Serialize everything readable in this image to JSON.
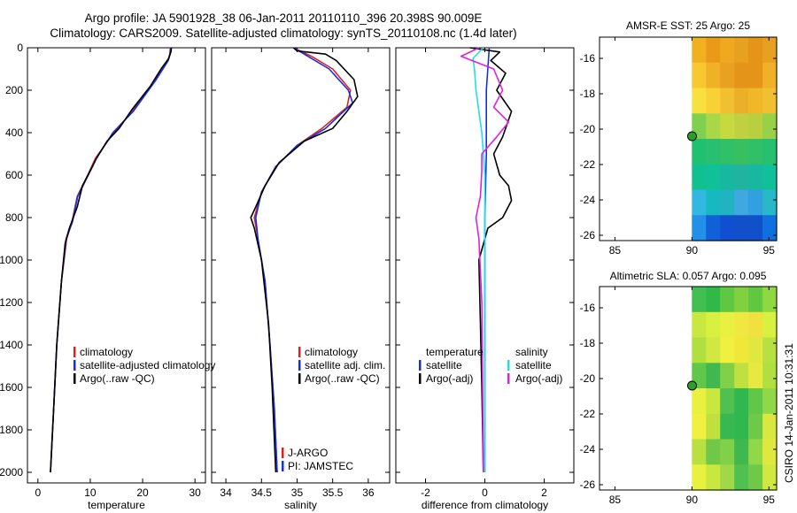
{
  "titles": {
    "line1": "Argo profile: JA 5901928_38 06-Jan-2011 20110110_396 20.398S 90.009E",
    "line2": "Climatology: CARS2009. Satellite-adjusted climatology: synTS_20110108.nc (1.4d later)"
  },
  "side_label": "CSIRO 14-Jan-2011 10:31:31",
  "colors": {
    "climatology": "#e02020",
    "satellite": "#1530e0",
    "argo": "#000000",
    "sal_satellite": "#20e0e0",
    "sal_argo": "#e020e0",
    "marker": "#2aa02a"
  },
  "chart_data": [
    {
      "type": "line",
      "name": "temperature-profile",
      "xlabel": "temperature",
      "ylabel": "",
      "xlim": [
        -2,
        32
      ],
      "ylim": [
        2050,
        0
      ],
      "xticks": [
        "0",
        "10",
        "20",
        "30"
      ],
      "xtick_values": [
        0,
        10,
        20,
        30
      ],
      "yticks": [
        "0",
        "200",
        "400",
        "600",
        "800",
        "1000",
        "1200",
        "1400",
        "1600",
        "1800",
        "2000"
      ],
      "ytick_values": [
        0,
        200,
        400,
        600,
        800,
        1000,
        1200,
        1400,
        1600,
        1800,
        2000
      ],
      "legend": [
        "climatology",
        "satellite-adjusted climatology",
        "Argo(..raw -QC)"
      ],
      "series": [
        {
          "name": "climatology",
          "color_key": "climatology",
          "points": [
            [
              25.3,
              0
            ],
            [
              25.2,
              30
            ],
            [
              24.8,
              60
            ],
            [
              22.5,
              150
            ],
            [
              18,
              300
            ],
            [
              14.5,
              400
            ],
            [
              11,
              520
            ],
            [
              9.5,
              600
            ],
            [
              7.5,
              700
            ],
            [
              6.5,
              820
            ],
            [
              5.5,
              900
            ],
            [
              4.5,
              1100
            ],
            [
              3.6,
              1400
            ],
            [
              3,
              1700
            ],
            [
              2.4,
              2000
            ]
          ]
        },
        {
          "name": "satellite-adjusted climatology",
          "color_key": "satellite",
          "points": [
            [
              25.4,
              0
            ],
            [
              25.2,
              30
            ],
            [
              24.9,
              60
            ],
            [
              22.6,
              150
            ],
            [
              18.2,
              300
            ],
            [
              14.3,
              400
            ],
            [
              11.2,
              520
            ],
            [
              9.6,
              600
            ],
            [
              7.6,
              700
            ],
            [
              6.6,
              820
            ],
            [
              5.4,
              900
            ],
            [
              4.5,
              1100
            ],
            [
              3.6,
              1400
            ],
            [
              3,
              1700
            ],
            [
              2.4,
              2000
            ]
          ]
        },
        {
          "name": "Argo(..raw -QC)",
          "color_key": "argo",
          "points": [
            [
              25.5,
              0
            ],
            [
              25.4,
              20
            ],
            [
              25,
              50
            ],
            [
              23.5,
              100
            ],
            [
              21.5,
              180
            ],
            [
              18,
              290
            ],
            [
              15.5,
              380
            ],
            [
              13.2,
              440
            ],
            [
              11.2,
              520
            ],
            [
              10,
              580
            ],
            [
              8.5,
              650
            ],
            [
              7.5,
              750
            ],
            [
              6,
              850
            ],
            [
              5.2,
              920
            ],
            [
              4.5,
              1100
            ],
            [
              3.6,
              1400
            ],
            [
              3,
              1700
            ],
            [
              2.4,
              2000
            ]
          ]
        }
      ]
    },
    {
      "type": "line",
      "name": "salinity-profile",
      "xlabel": "salinity",
      "xlim": [
        33.8,
        36.3
      ],
      "ylim": [
        2050,
        0
      ],
      "xticks": [
        "34",
        "34.5",
        "35",
        "35.5",
        "36"
      ],
      "xtick_values": [
        34,
        34.5,
        35,
        35.5,
        36
      ],
      "legend": [
        "climatology",
        "satellite adj. clim.",
        "Argo(..raw -QC)"
      ],
      "annotations": [
        "J-ARGO",
        "PI: JAMSTEC"
      ],
      "series": [
        {
          "name": "climatology",
          "color_key": "climatology",
          "points": [
            [
              34.95,
              0
            ],
            [
              35.2,
              40
            ],
            [
              35.5,
              100
            ],
            [
              35.75,
              200
            ],
            [
              35.7,
              280
            ],
            [
              35.35,
              380
            ],
            [
              35.0,
              460
            ],
            [
              34.7,
              560
            ],
            [
              34.5,
              680
            ],
            [
              34.4,
              800
            ],
            [
              34.45,
              900
            ],
            [
              34.55,
              1100
            ],
            [
              34.62,
              1400
            ],
            [
              34.68,
              1700
            ],
            [
              34.72,
              2000
            ]
          ]
        },
        {
          "name": "satellite adj. clim.",
          "color_key": "satellite",
          "points": [
            [
              34.95,
              0
            ],
            [
              35.15,
              40
            ],
            [
              35.45,
              100
            ],
            [
              35.72,
              200
            ],
            [
              35.78,
              260
            ],
            [
              35.4,
              380
            ],
            [
              35.0,
              460
            ],
            [
              34.7,
              560
            ],
            [
              34.5,
              680
            ],
            [
              34.42,
              800
            ],
            [
              34.45,
              900
            ],
            [
              34.55,
              1100
            ],
            [
              34.62,
              1400
            ],
            [
              34.68,
              1700
            ],
            [
              34.72,
              2000
            ]
          ]
        },
        {
          "name": "Argo(..raw -QC)",
          "color_key": "argo",
          "points": [
            [
              34.95,
              0
            ],
            [
              35.0,
              15
            ],
            [
              35.4,
              30
            ],
            [
              35.55,
              60
            ],
            [
              35.8,
              150
            ],
            [
              35.85,
              230
            ],
            [
              35.7,
              300
            ],
            [
              35.5,
              380
            ],
            [
              35.1,
              440
            ],
            [
              34.75,
              540
            ],
            [
              34.55,
              650
            ],
            [
              34.42,
              750
            ],
            [
              34.35,
              800
            ],
            [
              34.4,
              850
            ],
            [
              34.5,
              1000
            ],
            [
              34.6,
              1300
            ],
            [
              34.65,
              1600
            ],
            [
              34.7,
              2000
            ]
          ]
        }
      ]
    },
    {
      "type": "line",
      "name": "difference-profile",
      "xlabel": "difference from climatology",
      "xlim": [
        -3,
        3
      ],
      "ylim": [
        2050,
        0
      ],
      "xticks": [
        "-2",
        "0",
        "2"
      ],
      "xtick_values": [
        -2,
        0,
        2
      ],
      "legend_left": [
        "temperature",
        "satellite",
        "Argo(-adj)"
      ],
      "legend_right": [
        "salinity",
        "satellite",
        "Argo(-adj)"
      ],
      "series": [
        {
          "name": "temperature satellite",
          "color_key": "satellite",
          "points": [
            [
              0.15,
              0
            ],
            [
              0.05,
              200
            ],
            [
              0.05,
              500
            ],
            [
              0,
              800
            ],
            [
              0,
              2000
            ]
          ]
        },
        {
          "name": "temperature Argo(-adj)",
          "color_key": "argo",
          "points": [
            [
              -0.5,
              0
            ],
            [
              0.5,
              20
            ],
            [
              0.2,
              60
            ],
            [
              0.7,
              120
            ],
            [
              0.4,
              200
            ],
            [
              0.9,
              300
            ],
            [
              0.6,
              420
            ],
            [
              0.3,
              500
            ],
            [
              0.5,
              600
            ],
            [
              0.8,
              650
            ],
            [
              0.9,
              720
            ],
            [
              0.6,
              800
            ],
            [
              0.1,
              850
            ],
            [
              -0.2,
              1000
            ],
            [
              -0.15,
              1300
            ],
            [
              -0.1,
              1600
            ],
            [
              -0.05,
              2000
            ]
          ]
        },
        {
          "name": "salinity satellite",
          "color_key": "sal_satellite",
          "points": [
            [
              -0.05,
              0
            ],
            [
              -0.4,
              50
            ],
            [
              -0.35,
              100
            ],
            [
              -0.3,
              200
            ],
            [
              -0.1,
              400
            ],
            [
              0,
              600
            ],
            [
              0,
              800
            ],
            [
              0,
              2000
            ]
          ]
        },
        {
          "name": "salinity Argo(-adj)",
          "color_key": "sal_argo",
          "points": [
            [
              -0.2,
              0
            ],
            [
              -0.8,
              40
            ],
            [
              0.3,
              100
            ],
            [
              0.6,
              200
            ],
            [
              0.3,
              280
            ],
            [
              0.8,
              350
            ],
            [
              0.4,
              420
            ],
            [
              -0.1,
              500
            ],
            [
              -0.1,
              580
            ],
            [
              -0.15,
              700
            ],
            [
              -0.3,
              800
            ],
            [
              -0.2,
              900
            ],
            [
              -0.1,
              1200
            ],
            [
              -0.08,
              1500
            ],
            [
              -0.05,
              2000
            ]
          ]
        }
      ]
    },
    {
      "type": "heatmap",
      "name": "amsr-sst-map",
      "title": "AMSR-E SST: 25 Argo: 25",
      "xlim": [
        84,
        95.5
      ],
      "ylim": [
        -26.3,
        -14.8
      ],
      "xticks": [
        "85",
        "90",
        "95"
      ],
      "xtick_values": [
        85,
        90,
        95
      ],
      "yticks": [
        "-16",
        "-18",
        "-20",
        "-22",
        "-24",
        "-26"
      ],
      "ytick_values": [
        -16,
        -18,
        -20,
        -22,
        -24,
        -26
      ],
      "data_extent_lon": [
        90,
        95.5
      ],
      "argo_position": [
        90.009,
        -20.398
      ],
      "field_rows_north_to_south": [
        [
          "#f0b020",
          "#e89a18",
          "#f0a820",
          "#e8a020",
          "#e49418",
          "#e8a020"
        ],
        [
          "#f8c830",
          "#f0b028",
          "#eaa020",
          "#e49418",
          "#e49418",
          "#f0b028"
        ],
        [
          "#f8e040",
          "#f8d038",
          "#f0c030",
          "#ecb028",
          "#f0b828",
          "#f0c030"
        ],
        [
          "#80d050",
          "#a8d848",
          "#c8d840",
          "#c0d040",
          "#b8d040",
          "#98d048"
        ],
        [
          "#20c070",
          "#28c070",
          "#30c068",
          "#38c060",
          "#30c068",
          "#28c070"
        ],
        [
          "#10c090",
          "#10c098",
          "#18b8a0",
          "#20b4a0",
          "#18b8a0",
          "#10c098"
        ],
        [
          "#30b8e0",
          "#18b8c0",
          "#20b4c0",
          "#40a8e0",
          "#30a0e0",
          "#28b8c8"
        ],
        [
          "#2090e8",
          "#1060d8",
          "#1050d0",
          "#1050c8",
          "#1050c8",
          "#1070e0"
        ]
      ]
    },
    {
      "type": "heatmap",
      "name": "altimetric-sla-map",
      "title": "Altimetric SLA: 0.057 Argo: 0.095",
      "xlim": [
        84,
        95.5
      ],
      "ylim": [
        -26.3,
        -14.8
      ],
      "xticks": [
        "85",
        "90",
        "95"
      ],
      "xtick_values": [
        85,
        90,
        95
      ],
      "yticks": [
        "-16",
        "-18",
        "-20",
        "-22",
        "-24",
        "-26"
      ],
      "ytick_values": [
        -16,
        -18,
        -20,
        -22,
        -24,
        -26
      ],
      "data_extent_lon": [
        90,
        95.5
      ],
      "argo_position": [
        90.009,
        -20.398
      ],
      "field_rows_north_to_south": [
        [
          "#40c050",
          "#30b848",
          "#60c840",
          "#80d040",
          "#60c840",
          "#90d840"
        ],
        [
          "#c8e840",
          "#d8f040",
          "#e8f040",
          "#f0e840",
          "#f0e040",
          "#d8f040"
        ],
        [
          "#b0e040",
          "#d0e840",
          "#f0f040",
          "#f0e838",
          "#e0e840",
          "#b8e040"
        ],
        [
          "#60c848",
          "#40b850",
          "#80d048",
          "#c0e040",
          "#e8e840",
          "#b0e040"
        ],
        [
          "#e8f040",
          "#c8e840",
          "#50c050",
          "#30b850",
          "#60c848",
          "#90d848"
        ],
        [
          "#f0f040",
          "#c0e040",
          "#38b850",
          "#30b850",
          "#70c848",
          "#d8e840"
        ],
        [
          "#b8e040",
          "#70c848",
          "#80d048",
          "#40b850",
          "#90d848",
          "#e0e840"
        ],
        [
          "#e8f040",
          "#c8e840",
          "#a0d848",
          "#50c050",
          "#70c848",
          "#d0e840"
        ]
      ]
    }
  ]
}
